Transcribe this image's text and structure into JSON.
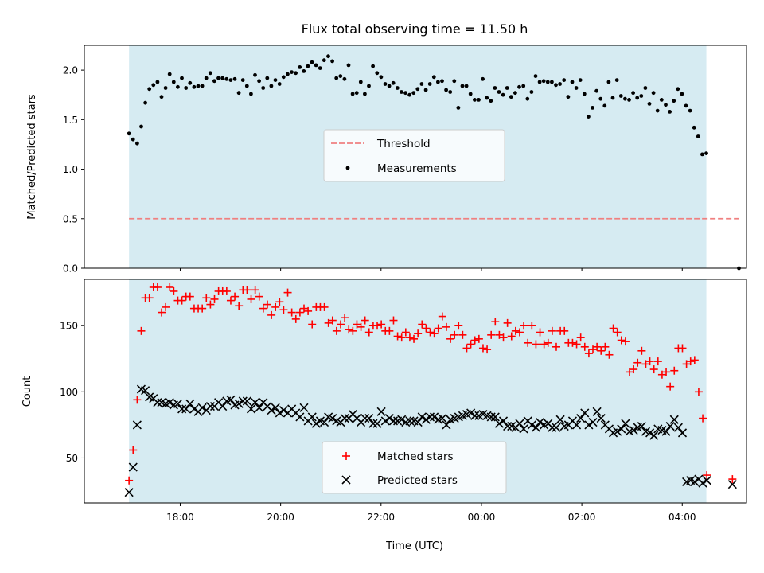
{
  "chart_data": {
    "title": "Flux total observing time = 11.50 h",
    "xlabel": "Time (UTC)",
    "x_tick_labels": [
      "18:00",
      "20:00",
      "22:00",
      "00:00",
      "02:00",
      "04:00"
    ],
    "x_tick_hours": [
      18,
      20,
      22,
      24,
      26,
      28
    ],
    "xlim_hours": [
      16.09,
      29.28
    ],
    "shaded_span_hours": [
      16.98,
      28.48
    ],
    "colors": {
      "shade": "#add8e6",
      "threshold": "#f08080",
      "measurements": "#000000",
      "matched": "#ff0000",
      "predicted": "#000000"
    },
    "charts": [
      {
        "type": "scatter",
        "ylabel": "Matched/Predicted stars",
        "ylim": [
          0,
          2.25
        ],
        "y_ticks": [
          0.0,
          0.5,
          1.0,
          1.5,
          2.0
        ],
        "y_tick_labels": [
          "0.0",
          "0.5",
          "1.0",
          "1.5",
          "2.0"
        ],
        "threshold": {
          "name": "Threshold",
          "value": 0.5
        },
        "legend": [
          "Threshold",
          "Measurements"
        ],
        "legend_loc": "center",
        "series": [
          {
            "name": "Measurements",
            "marker": "dot",
            "y": [
              1.36,
              1.3,
              1.26,
              1.43,
              1.67,
              1.81,
              1.85,
              1.88,
              1.73,
              1.82,
              1.96,
              1.88,
              1.83,
              1.92,
              1.82,
              1.87,
              1.83,
              1.84,
              1.84,
              1.92,
              1.97,
              1.89,
              1.92,
              1.92,
              1.91,
              1.9,
              1.91,
              1.77,
              1.9,
              1.84,
              1.76,
              1.95,
              1.89,
              1.82,
              1.92,
              1.84,
              1.9,
              1.86,
              1.93,
              1.96,
              1.98,
              1.97,
              2.03,
              1.99,
              2.04,
              2.08,
              2.05,
              2.02,
              2.1,
              2.14,
              2.09,
              1.92,
              1.94,
              1.91,
              2.05,
              1.76,
              1.77,
              1.88,
              1.76,
              1.84,
              2.04,
              1.97,
              1.93,
              1.86,
              1.84,
              1.87,
              1.82,
              1.78,
              1.77,
              1.75,
              1.77,
              1.81,
              1.86,
              1.8,
              1.86,
              1.93,
              1.88,
              1.89,
              1.8,
              1.78,
              1.89,
              1.62,
              1.84,
              1.84,
              1.76,
              1.7,
              1.7,
              1.91,
              1.72,
              1.69,
              1.82,
              1.78,
              1.75,
              1.82,
              1.73,
              1.77,
              1.83,
              1.84,
              1.71,
              1.78,
              1.94,
              1.88,
              1.89,
              1.88,
              1.88,
              1.85,
              1.86,
              1.9,
              1.73,
              1.88,
              1.82,
              1.9,
              1.76,
              1.53,
              1.62,
              1.79,
              1.71,
              1.64,
              1.88,
              1.72,
              1.9,
              1.74,
              1.71,
              1.7,
              1.77,
              1.72,
              1.74,
              1.82,
              1.66,
              1.77,
              1.59,
              1.7,
              1.65,
              1.58,
              1.69,
              1.81,
              1.76,
              1.64,
              1.59,
              1.42,
              1.33,
              1.15,
              1.16,
              0.0
            ]
          }
        ]
      },
      {
        "type": "scatter",
        "ylabel": "Count",
        "ylim": [
          16,
          185
        ],
        "y_ticks": [
          50,
          100,
          150
        ],
        "y_tick_labels": [
          "50",
          "100",
          "150"
        ],
        "legend": [
          "Matched stars",
          "Predicted stars"
        ],
        "legend_loc": "lower center",
        "series": [
          {
            "name": "Matched stars",
            "marker": "plus",
            "y": [
              33,
              56,
              94,
              146,
              171,
              171,
              179,
              179,
              160,
              164,
              179,
              176,
              169,
              169,
              172,
              172,
              163,
              163,
              163,
              171,
              166,
              170,
              176,
              176,
              176,
              169,
              172,
              165,
              177,
              177,
              170,
              177,
              172,
              163,
              166,
              158,
              164,
              168,
              162,
              175,
              160,
              155,
              160,
              163,
              161,
              151,
              164,
              164,
              164,
              152,
              154,
              146,
              151,
              156,
              147,
              146,
              151,
              149,
              154,
              145,
              150,
              150,
              151,
              146,
              146,
              154,
              142,
              141,
              145,
              141,
              140,
              144,
              151,
              148,
              145,
              144,
              148,
              157,
              149,
              140,
              143,
              150,
              143,
              133,
              136,
              139,
              140,
              133,
              132,
              143,
              153,
              143,
              141,
              152,
              142,
              146,
              145,
              150,
              137,
              150,
              136,
              145,
              136,
              137,
              146,
              134,
              146,
              146,
              137,
              137,
              136,
              141,
              134,
              129,
              132,
              134,
              131,
              134,
              128,
              148,
              145,
              139,
              138,
              115,
              117,
              122,
              131,
              121,
              123,
              117,
              123,
              113,
              115,
              104,
              116,
              133,
              133,
              121,
              123,
              124,
              100,
              80,
              37,
              34
            ]
          },
          {
            "name": "Predicted stars",
            "marker": "x",
            "y": [
              24,
              43,
              75,
              102,
              101,
              96,
              95,
              92,
              92,
              91,
              92,
              90,
              91,
              87,
              87,
              91,
              87,
              85,
              88,
              86,
              89,
              89,
              92,
              89,
              93,
              94,
              90,
              91,
              93,
              93,
              87,
              92,
              88,
              92,
              89,
              86,
              88,
              84,
              86,
              84,
              87,
              84,
              81,
              88,
              78,
              81,
              76,
              78,
              77,
              81,
              80,
              78,
              77,
              80,
              80,
              83,
              80,
              77,
              80,
              80,
              76,
              76,
              85,
              78,
              80,
              78,
              78,
              79,
              77,
              78,
              78,
              77,
              81,
              79,
              81,
              81,
              79,
              80,
              75,
              79,
              80,
              81,
              82,
              83,
              84,
              82,
              82,
              83,
              82,
              81,
              81,
              76,
              78,
              74,
              74,
              73,
              76,
              72,
              78,
              75,
              73,
              77,
              75,
              76,
              73,
              73,
              79,
              74,
              75,
              78,
              75,
              80,
              84,
              75,
              77,
              85,
              80,
              75,
              72,
              69,
              70,
              72,
              76,
              70,
              71,
              73,
              74,
              70,
              69,
              67,
              72,
              71,
              70,
              74,
              79,
              73,
              69,
              32,
              33,
              32,
              34,
              31,
              33,
              30
            ]
          }
        ]
      }
    ]
  }
}
